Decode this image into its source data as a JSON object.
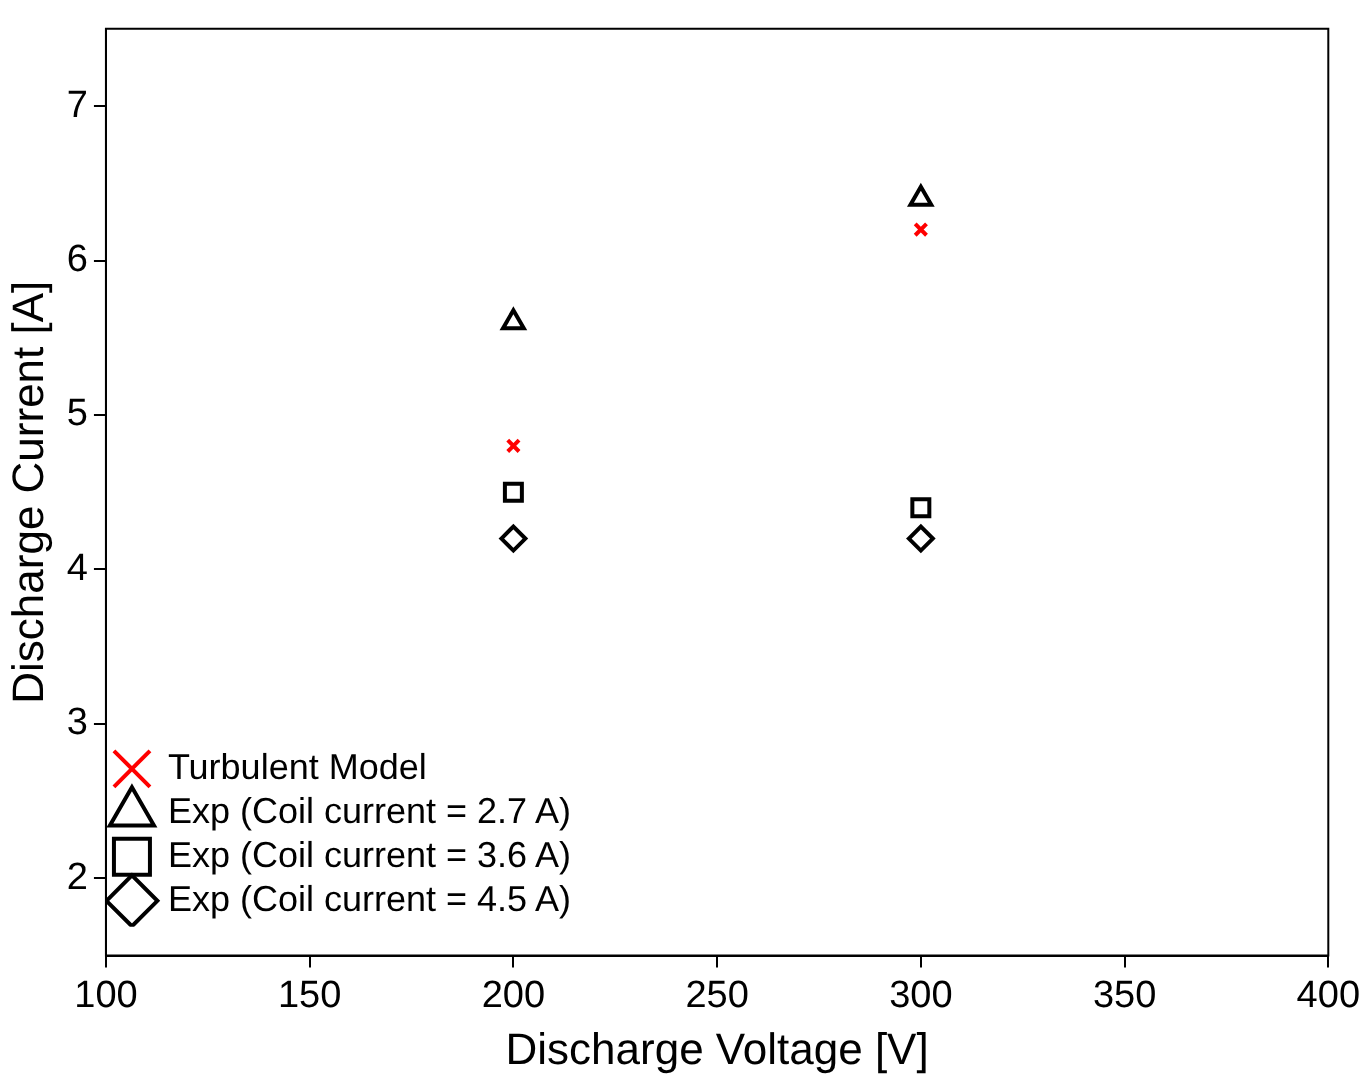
{
  "chart_data": {
    "type": "scatter",
    "xlabel": "Discharge Voltage [V]",
    "ylabel": "Discharge Current [A]",
    "xlim": [
      100,
      400
    ],
    "xticks": [
      100,
      150,
      200,
      250,
      300,
      350,
      400
    ],
    "ylim": [
      1.5,
      7.5
    ],
    "yticks": [
      2,
      3,
      4,
      5,
      6,
      7
    ],
    "grid": false,
    "legend": "bottom left",
    "x": [
      200,
      300
    ],
    "series": [
      {
        "name": "Turbulent Model",
        "color": "#ff0000",
        "marker": "cross",
        "values": [
          4.8,
          6.2
        ]
      },
      {
        "name": "Exp (Coil current = 2.7 A)",
        "color": "#000000",
        "marker": "triangle",
        "values": [
          5.6,
          6.4
        ]
      },
      {
        "name": "Exp (Coil current = 3.6 A)",
        "color": "#000000",
        "marker": "square",
        "values": [
          4.5,
          4.4
        ]
      },
      {
        "name": "Exp (Coil current = 4.5 A)",
        "color": "#000000",
        "marker": "diamond",
        "values": [
          4.2,
          4.2
        ]
      }
    ]
  }
}
